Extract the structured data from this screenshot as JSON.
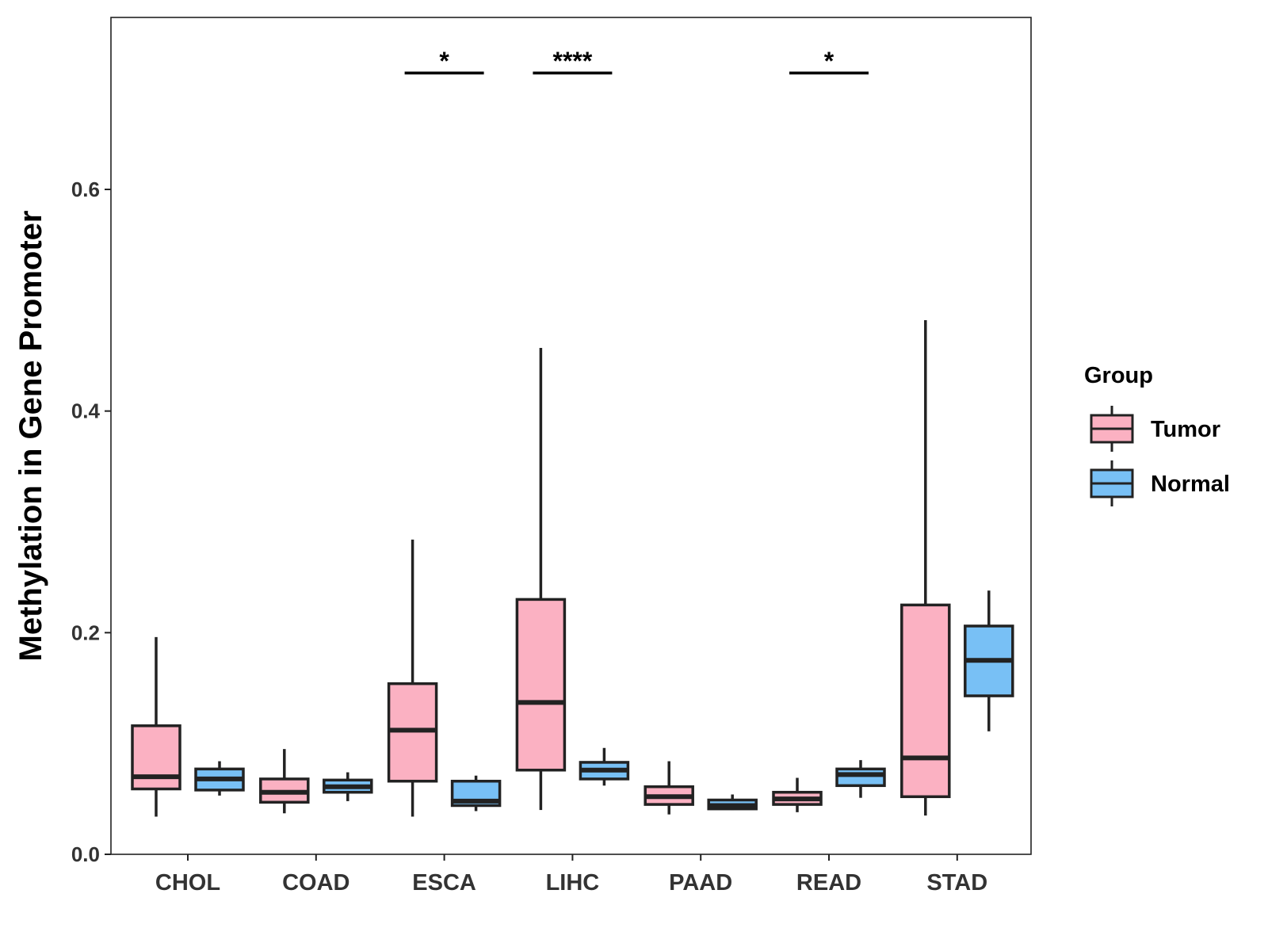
{
  "chart_data": {
    "type": "boxplot",
    "title": "",
    "xlabel": "",
    "ylabel": "Methylation in Gene Promoter",
    "ylim": [
      0,
      0.755
    ],
    "yticks": [
      0.0,
      0.2,
      0.4,
      0.6
    ],
    "ytick_labels": [
      "0.0",
      "0.2",
      "0.4",
      "0.6"
    ],
    "grid": false,
    "categories": [
      "CHOL",
      "COAD",
      "ESCA",
      "LIHC",
      "PAAD",
      "READ",
      "STAD"
    ],
    "legend": {
      "title": "Group",
      "position": "right",
      "entries": [
        {
          "name": "Tumor",
          "color": "#FBB1C2"
        },
        {
          "name": "Normal",
          "color": "#78C0F5"
        }
      ]
    },
    "series": [
      {
        "name": "Tumor",
        "color": "#FBB1C2",
        "boxes": [
          {
            "min": 0.034,
            "q1": 0.059,
            "median": 0.07,
            "q3": 0.116,
            "max": 0.196
          },
          {
            "min": 0.037,
            "q1": 0.047,
            "median": 0.056,
            "q3": 0.068,
            "max": 0.095
          },
          {
            "min": 0.034,
            "q1": 0.066,
            "median": 0.112,
            "q3": 0.154,
            "max": 0.284
          },
          {
            "min": 0.04,
            "q1": 0.076,
            "median": 0.137,
            "q3": 0.23,
            "max": 0.457
          },
          {
            "min": 0.036,
            "q1": 0.045,
            "median": 0.052,
            "q3": 0.061,
            "max": 0.084
          },
          {
            "min": 0.038,
            "q1": 0.045,
            "median": 0.05,
            "q3": 0.056,
            "max": 0.069
          },
          {
            "min": 0.035,
            "q1": 0.052,
            "median": 0.087,
            "q3": 0.225,
            "max": 0.482
          }
        ]
      },
      {
        "name": "Normal",
        "color": "#78C0F5",
        "boxes": [
          {
            "min": 0.053,
            "q1": 0.058,
            "median": 0.068,
            "q3": 0.077,
            "max": 0.084
          },
          {
            "min": 0.048,
            "q1": 0.056,
            "median": 0.061,
            "q3": 0.067,
            "max": 0.074
          },
          {
            "min": 0.039,
            "q1": 0.044,
            "median": 0.048,
            "q3": 0.066,
            "max": 0.071
          },
          {
            "min": 0.062,
            "q1": 0.068,
            "median": 0.076,
            "q3": 0.083,
            "max": 0.096
          },
          {
            "min": 0.04,
            "q1": 0.041,
            "median": 0.044,
            "q3": 0.049,
            "max": 0.054
          },
          {
            "min": 0.051,
            "q1": 0.062,
            "median": 0.072,
            "q3": 0.077,
            "max": 0.085
          },
          {
            "min": 0.111,
            "q1": 0.143,
            "median": 0.175,
            "q3": 0.206,
            "max": 0.238
          }
        ]
      }
    ],
    "annotations": [
      {
        "category": "ESCA",
        "label": "*",
        "y": 0.705
      },
      {
        "category": "LIHC",
        "label": "****",
        "y": 0.705
      },
      {
        "category": "READ",
        "label": "*",
        "y": 0.705
      }
    ]
  }
}
